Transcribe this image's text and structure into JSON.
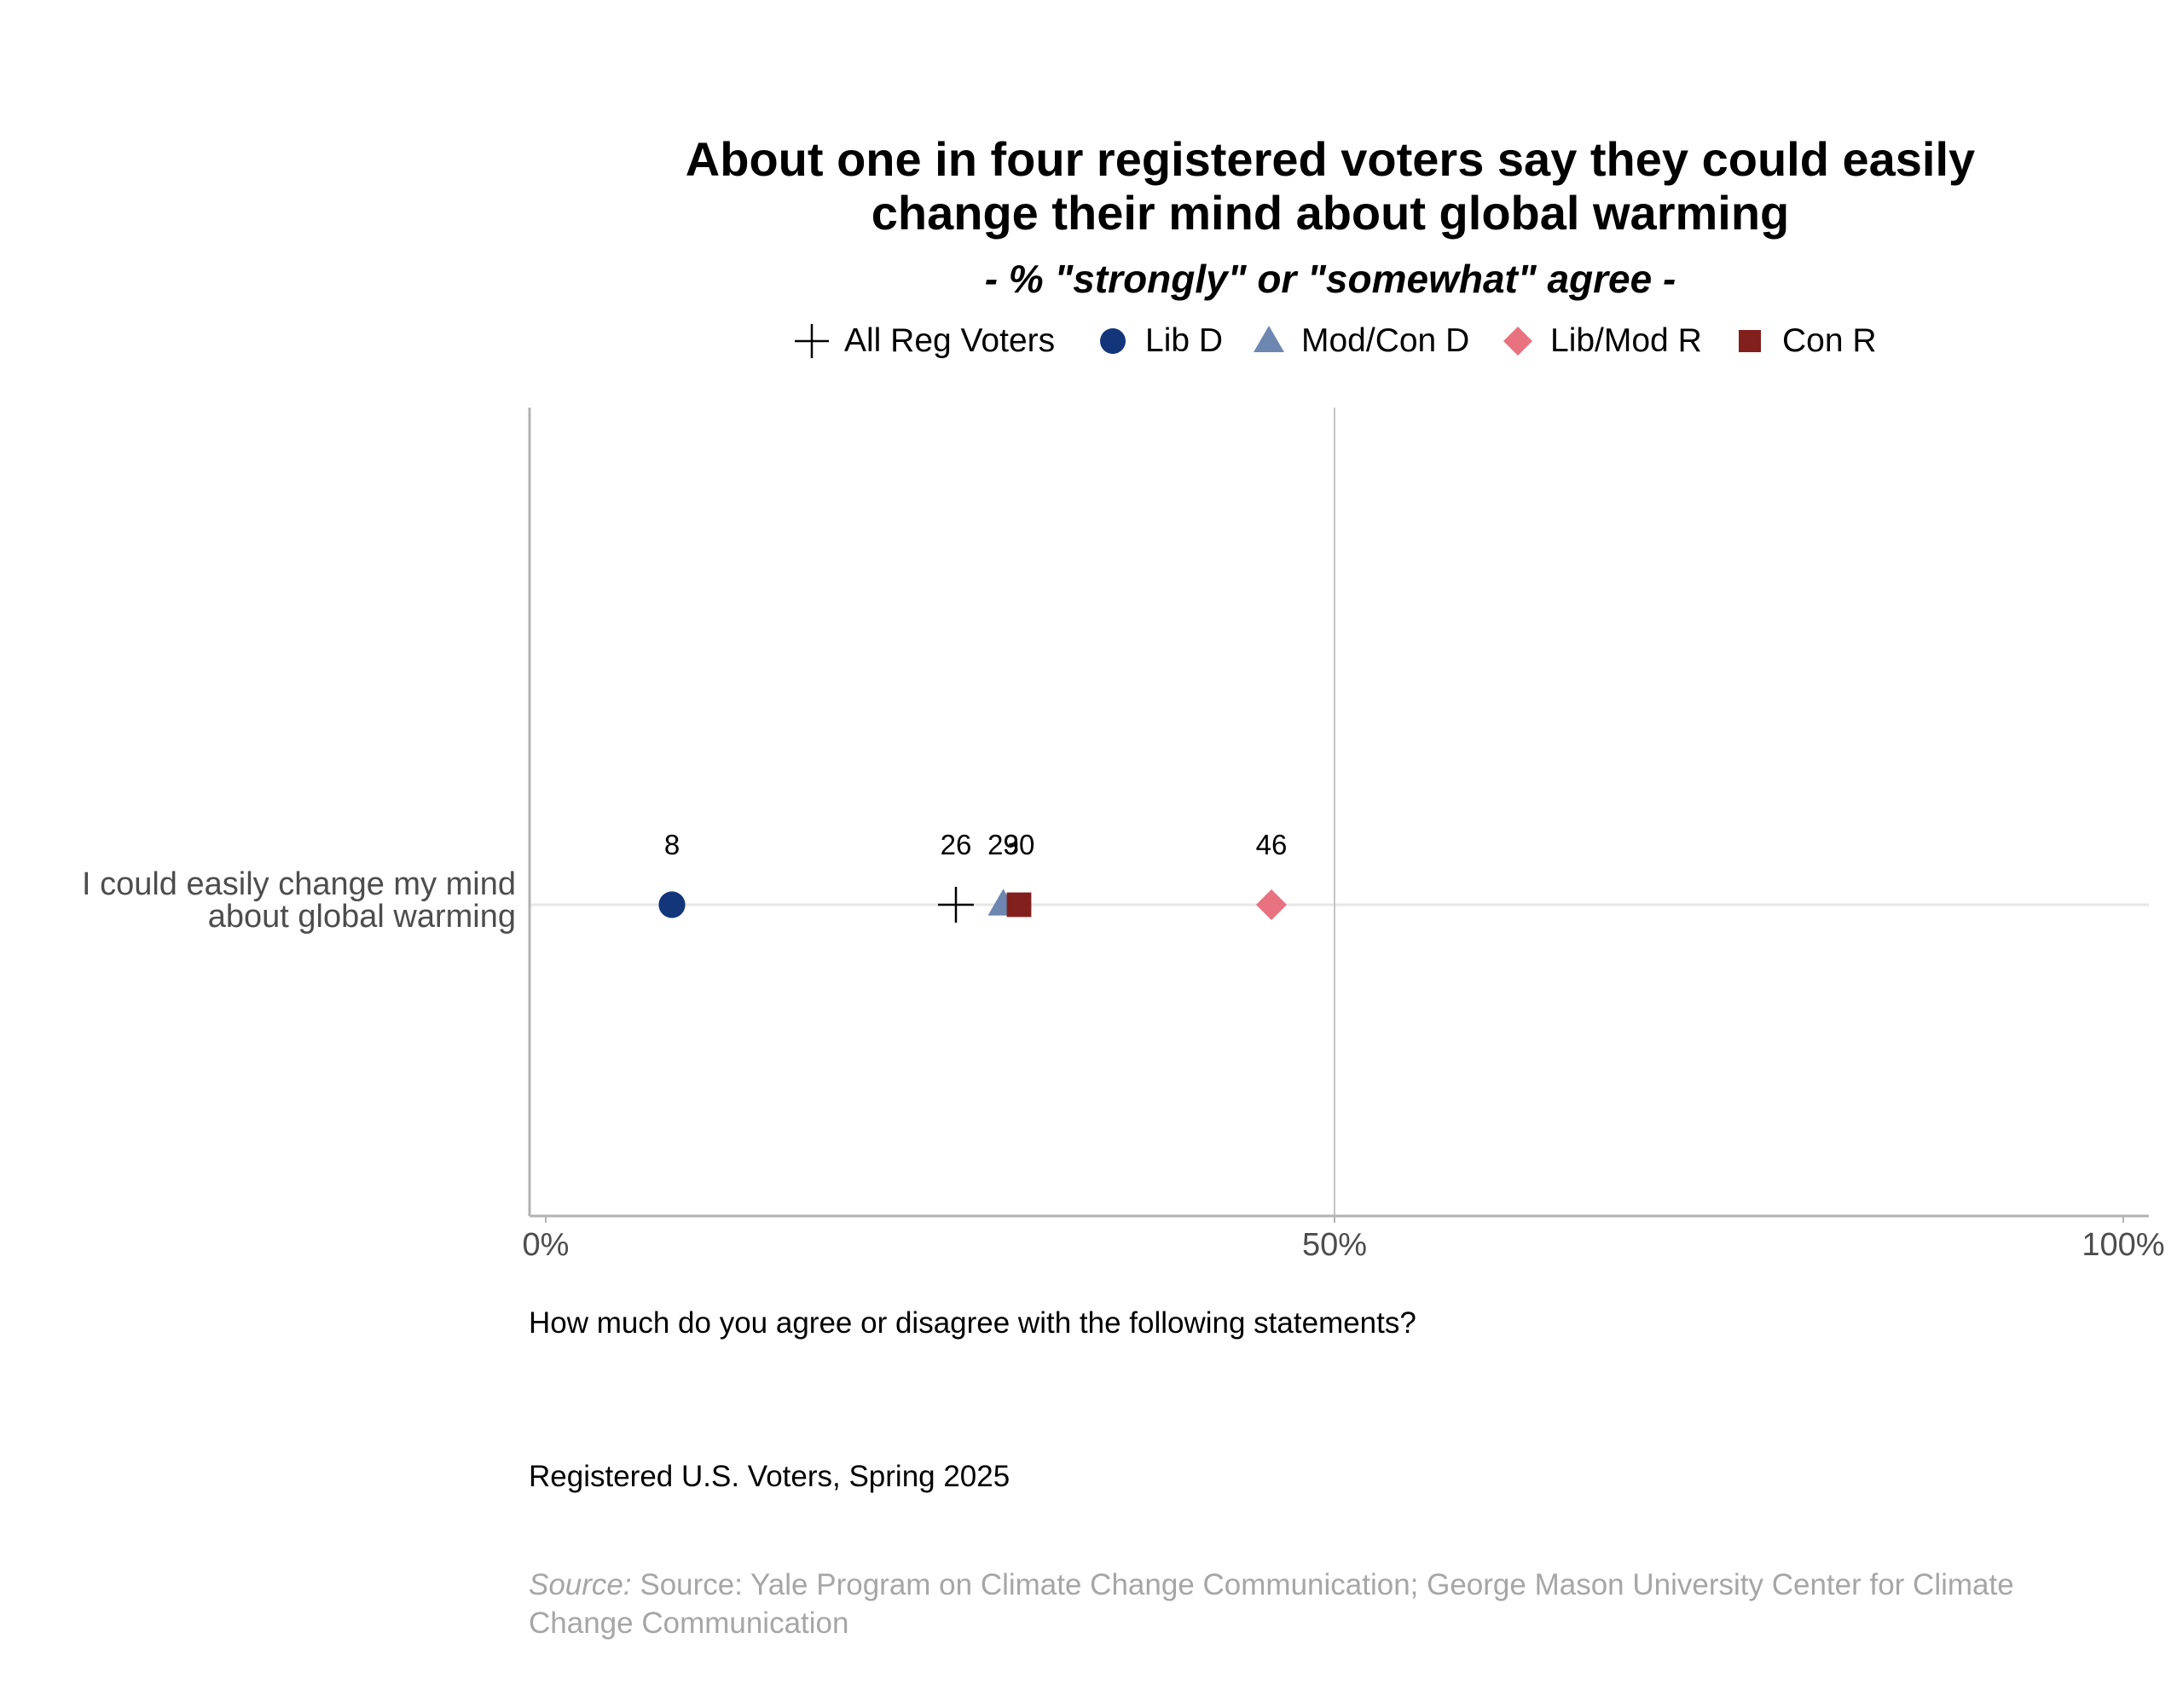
{
  "chart_data": {
    "type": "scatter",
    "title": "About one in four registered voters say they could easily change their mind about global warming",
    "title_lines": [
      "About one in four registered voters say they could easily",
      "change their mind about global warming"
    ],
    "subtitle": "- % \"strongly\" or \"somewhat\" agree -",
    "categories": [
      "I could easily change my mind about global warming"
    ],
    "category_label_lines": [
      "I could easily change my mind",
      "about global warming"
    ],
    "x_ticks": [
      "0%",
      "50%",
      "100%"
    ],
    "xlim": [
      0,
      100
    ],
    "grid": "vertical gridline at 50%, horizontal gridline at the category",
    "legend_position": "top",
    "series": [
      {
        "name": "All Reg Voters",
        "marker": "plus",
        "color": "#000000",
        "values": [
          26
        ]
      },
      {
        "name": "Lib D",
        "marker": "circle",
        "color": "#13357a",
        "values": [
          8
        ]
      },
      {
        "name": "Mod/Con D",
        "marker": "triangle",
        "color": "#6d87b0",
        "values": [
          29
        ]
      },
      {
        "name": "Lib/Mod R",
        "marker": "diamond",
        "color": "#e8727f",
        "values": [
          46
        ]
      },
      {
        "name": "Con R",
        "marker": "square",
        "color": "#82201e",
        "values": [
          30
        ]
      }
    ],
    "data_labels": [
      "26",
      "8",
      "29",
      "46",
      "30"
    ]
  },
  "notes": {
    "question": "How much do you agree or disagree with the following statements?",
    "sample": "Registered U.S. Voters, Spring 2025",
    "source_prefix": "Source:",
    "source_text": " Source: Yale Program on Climate Change Communication; George Mason University Center for Climate Change Communication"
  }
}
